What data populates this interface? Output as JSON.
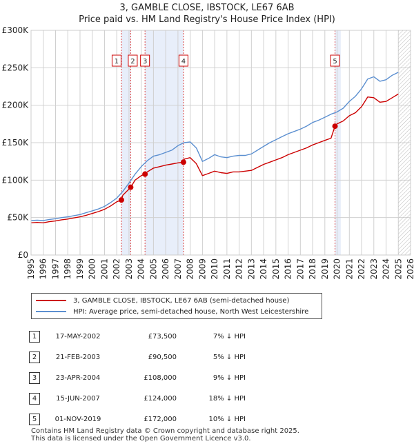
{
  "title_line1": "3, GAMBLE CLOSE, IBSTOCK, LE67 6AB",
  "title_line2": "Price paid vs. HM Land Registry's House Price Index (HPI)",
  "colors": {
    "property": "#cc0000",
    "hpi": "#5b8fd0",
    "shade": "#e8eefa",
    "marker_line": "#dd4444",
    "grid": "#d0d0d0"
  },
  "legend": {
    "property_label": "3, GAMBLE CLOSE, IBSTOCK, LE67 6AB (semi-detached house)",
    "hpi_label": "HPI: Average price, semi-detached house, North West Leicestershire"
  },
  "transactions": [
    {
      "id": "1",
      "date": "17-MAY-2002",
      "price": "£73,500",
      "hpi_diff": "7% ↓ HPI"
    },
    {
      "id": "2",
      "date": "21-FEB-2003",
      "price": "£90,500",
      "hpi_diff": "5% ↓ HPI"
    },
    {
      "id": "3",
      "date": "23-APR-2004",
      "price": "£108,000",
      "hpi_diff": "9% ↓ HPI"
    },
    {
      "id": "4",
      "date": "15-JUN-2007",
      "price": "£124,000",
      "hpi_diff": "18% ↓ HPI"
    },
    {
      "id": "5",
      "date": "01-NOV-2019",
      "price": "£172,000",
      "hpi_diff": "10% ↓ HPI"
    }
  ],
  "footer_line1": "Contains HM Land Registry data © Crown copyright and database right 2025.",
  "footer_line2": "This data is licensed under the Open Government Licence v3.0.",
  "chart_data": {
    "type": "line",
    "title": "3, GAMBLE CLOSE, IBSTOCK, LE67 6AB — Price paid vs. HM Land Registry's House Price Index (HPI)",
    "xlim": [
      1995,
      2026
    ],
    "ylim": [
      0,
      300000
    ],
    "x_ticks": [
      1995,
      1996,
      1997,
      1998,
      1999,
      2000,
      2001,
      2002,
      2003,
      2004,
      2005,
      2006,
      2007,
      2008,
      2009,
      2010,
      2011,
      2012,
      2013,
      2014,
      2015,
      2016,
      2017,
      2018,
      2019,
      2020,
      2021,
      2022,
      2023,
      2024,
      2025,
      2026
    ],
    "y_ticks": [
      {
        "value": 0,
        "label": "£0"
      },
      {
        "value": 50000,
        "label": "£50K"
      },
      {
        "value": 100000,
        "label": "£100K"
      },
      {
        "value": 150000,
        "label": "£150K"
      },
      {
        "value": 200000,
        "label": "£200K"
      },
      {
        "value": 250000,
        "label": "£250K"
      },
      {
        "value": 300000,
        "label": "£300K"
      }
    ],
    "shaded_ranges": [
      [
        2002.38,
        2003.14
      ],
      [
        2004.31,
        2007.45
      ],
      [
        2019.83,
        2020.3
      ]
    ],
    "hatched_range": [
      2025.0,
      2026
    ],
    "sales": [
      {
        "label": "1",
        "x": 2002.38,
        "y": 73500
      },
      {
        "label": "2",
        "x": 2003.14,
        "y": 90500
      },
      {
        "label": "3",
        "x": 2004.31,
        "y": 108000
      },
      {
        "label": "4",
        "x": 2007.45,
        "y": 124000
      },
      {
        "label": "5",
        "x": 2019.83,
        "y": 172000
      }
    ],
    "series": [
      {
        "name": "HPI: Average price, semi-detached house, North West Leicestershire",
        "x": [
          1995,
          1995.5,
          1996,
          1996.5,
          1997,
          1997.5,
          1998,
          1998.5,
          1999,
          1999.5,
          2000,
          2000.5,
          2001,
          2001.5,
          2002,
          2002.5,
          2003,
          2003.5,
          2004,
          2004.5,
          2005,
          2005.5,
          2006,
          2006.5,
          2007,
          2007.5,
          2008,
          2008.5,
          2009,
          2009.5,
          2010,
          2010.5,
          2011,
          2011.5,
          2012,
          2012.5,
          2013,
          2013.5,
          2014,
          2014.5,
          2015,
          2015.5,
          2016,
          2016.5,
          2017,
          2017.5,
          2018,
          2018.5,
          2019,
          2019.5,
          2020,
          2020.5,
          2021,
          2021.5,
          2022,
          2022.5,
          2023,
          2023.5,
          2024,
          2024.5,
          2025
        ],
        "values": [
          46000,
          46500,
          46000,
          47500,
          48500,
          50000,
          51000,
          52500,
          54000,
          56500,
          59000,
          61500,
          65000,
          70000,
          76000,
          85000,
          96000,
          108000,
          118000,
          126000,
          132000,
          134000,
          137000,
          140000,
          146000,
          150000,
          151000,
          143000,
          125000,
          129000,
          134000,
          131000,
          130000,
          132000,
          133000,
          133000,
          135000,
          140000,
          145000,
          150000,
          154000,
          158000,
          162000,
          165000,
          168000,
          172000,
          177000,
          180000,
          184000,
          188000,
          191000,
          196000,
          205000,
          212000,
          222000,
          235000,
          238000,
          232000,
          234000,
          240000,
          244000
        ]
      },
      {
        "name": "3, GAMBLE CLOSE, IBSTOCK, LE67 6AB (semi-detached house)",
        "x": [
          1995,
          1995.5,
          1996,
          1996.5,
          1997,
          1997.5,
          1998,
          1998.5,
          1999,
          1999.5,
          2000,
          2000.5,
          2001,
          2001.5,
          2002,
          2002.38,
          2002.5,
          2003,
          2003.14,
          2003.5,
          2004,
          2004.31,
          2004.5,
          2005,
          2005.5,
          2006,
          2006.5,
          2007,
          2007.45,
          2007.5,
          2008,
          2008.5,
          2009,
          2009.5,
          2010,
          2010.5,
          2011,
          2011.5,
          2012,
          2012.5,
          2013,
          2013.5,
          2014,
          2014.5,
          2015,
          2015.5,
          2016,
          2016.5,
          2017,
          2017.5,
          2018,
          2018.5,
          2019,
          2019.5,
          2019.83,
          2020,
          2020.5,
          2021,
          2021.5,
          2022,
          2022.5,
          2023,
          2023.5,
          2024,
          2024.5,
          2025
        ],
        "values": [
          43000,
          43500,
          43000,
          44500,
          45500,
          47000,
          48000,
          49500,
          51000,
          53000,
          55500,
          58000,
          61000,
          65500,
          71000,
          73500,
          80000,
          88000,
          90500,
          100000,
          106000,
          108000,
          111000,
          116000,
          118000,
          120000,
          121500,
          123000,
          124000,
          128000,
          130000,
          122000,
          106000,
          109000,
          112000,
          110000,
          109000,
          111000,
          111000,
          112000,
          113000,
          117000,
          121000,
          124000,
          127000,
          130000,
          134000,
          137000,
          140000,
          143000,
          147000,
          150000,
          153000,
          156000,
          172000,
          175000,
          179000,
          186000,
          190000,
          198000,
          211000,
          210000,
          204000,
          205000,
          210000,
          215000
        ]
      }
    ]
  }
}
